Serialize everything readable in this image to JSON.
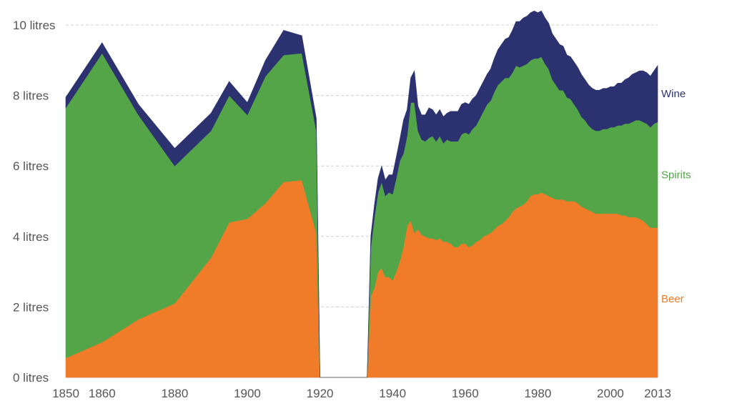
{
  "chart_data": {
    "type": "area",
    "stacked": true,
    "title": "",
    "xlabel": "",
    "ylabel": "",
    "xlim": [
      1850,
      2013
    ],
    "ylim": [
      0,
      10
    ],
    "grid": "horizontal dashed",
    "x_ticks": [
      1850,
      1860,
      1880,
      1900,
      1920,
      1940,
      1960,
      1980,
      2000,
      2013
    ],
    "x_tick_labels": [
      "1850",
      "1860",
      "1880",
      "1900",
      "1920",
      "1940",
      "1960",
      "1980",
      "2000",
      "2013"
    ],
    "y_ticks": [
      0,
      2,
      4,
      6,
      8,
      10
    ],
    "y_tick_labels": [
      "0 litres",
      "2 litres",
      "4 litres",
      "6 litres",
      "8 litres",
      "10 litres"
    ],
    "series": [
      {
        "name": "Beer",
        "color": "#f07b28",
        "label_color": "#f07b28",
        "points": [
          [
            1850,
            0.55
          ],
          [
            1860,
            1.0
          ],
          [
            1870,
            1.65
          ],
          [
            1880,
            2.1
          ],
          [
            1890,
            3.4
          ],
          [
            1895,
            4.4
          ],
          [
            1900,
            4.5
          ],
          [
            1905,
            4.95
          ],
          [
            1910,
            5.55
          ],
          [
            1915,
            5.6
          ],
          [
            1919,
            4.1
          ],
          [
            1920,
            0
          ],
          [
            1933,
            0
          ],
          [
            1934,
            2.3
          ],
          [
            1935,
            2.55
          ],
          [
            1936,
            3.0
          ],
          [
            1937,
            3.1
          ],
          [
            1938,
            2.85
          ],
          [
            1939,
            2.85
          ],
          [
            1940,
            2.75
          ],
          [
            1941,
            3.0
          ],
          [
            1942,
            3.3
          ],
          [
            1943,
            3.7
          ],
          [
            1944,
            4.3
          ],
          [
            1945,
            4.45
          ],
          [
            1946,
            4.1
          ],
          [
            1947,
            4.2
          ],
          [
            1948,
            4.05
          ],
          [
            1949,
            4.0
          ],
          [
            1950,
            3.95
          ],
          [
            1951,
            3.95
          ],
          [
            1952,
            3.9
          ],
          [
            1953,
            3.95
          ],
          [
            1954,
            3.85
          ],
          [
            1955,
            3.85
          ],
          [
            1956,
            3.8
          ],
          [
            1957,
            3.7
          ],
          [
            1958,
            3.7
          ],
          [
            1959,
            3.8
          ],
          [
            1960,
            3.8
          ],
          [
            1961,
            3.7
          ],
          [
            1962,
            3.75
          ],
          [
            1963,
            3.85
          ],
          [
            1964,
            3.9
          ],
          [
            1965,
            4.0
          ],
          [
            1966,
            4.05
          ],
          [
            1967,
            4.1
          ],
          [
            1968,
            4.2
          ],
          [
            1969,
            4.3
          ],
          [
            1970,
            4.35
          ],
          [
            1971,
            4.45
          ],
          [
            1972,
            4.55
          ],
          [
            1973,
            4.7
          ],
          [
            1974,
            4.8
          ],
          [
            1975,
            4.85
          ],
          [
            1976,
            4.9
          ],
          [
            1977,
            5.0
          ],
          [
            1978,
            5.15
          ],
          [
            1979,
            5.2
          ],
          [
            1980,
            5.2
          ],
          [
            1981,
            5.25
          ],
          [
            1982,
            5.2
          ],
          [
            1983,
            5.15
          ],
          [
            1984,
            5.1
          ],
          [
            1985,
            5.05
          ],
          [
            1986,
            5.05
          ],
          [
            1987,
            5.05
          ],
          [
            1988,
            5.0
          ],
          [
            1989,
            5.0
          ],
          [
            1990,
            5.0
          ],
          [
            1991,
            4.95
          ],
          [
            1992,
            4.85
          ],
          [
            1993,
            4.8
          ],
          [
            1994,
            4.75
          ],
          [
            1995,
            4.7
          ],
          [
            1996,
            4.65
          ],
          [
            1997,
            4.65
          ],
          [
            1998,
            4.65
          ],
          [
            1999,
            4.65
          ],
          [
            2000,
            4.65
          ],
          [
            2001,
            4.65
          ],
          [
            2002,
            4.65
          ],
          [
            2003,
            4.6
          ],
          [
            2004,
            4.6
          ],
          [
            2005,
            4.55
          ],
          [
            2006,
            4.55
          ],
          [
            2007,
            4.55
          ],
          [
            2008,
            4.5
          ],
          [
            2009,
            4.45
          ],
          [
            2010,
            4.35
          ],
          [
            2011,
            4.25
          ],
          [
            2012,
            4.25
          ],
          [
            2013,
            4.25
          ]
        ]
      },
      {
        "name": "Spirits",
        "color": "#53a548",
        "label_color": "#53a548",
        "points": [
          [
            1850,
            7.1
          ],
          [
            1860,
            8.2
          ],
          [
            1870,
            5.8
          ],
          [
            1880,
            3.9
          ],
          [
            1890,
            3.6
          ],
          [
            1895,
            3.6
          ],
          [
            1900,
            2.95
          ],
          [
            1905,
            3.6
          ],
          [
            1910,
            3.6
          ],
          [
            1915,
            3.6
          ],
          [
            1919,
            2.9
          ],
          [
            1920,
            0
          ],
          [
            1933,
            0
          ],
          [
            1934,
            1.4
          ],
          [
            1935,
            2.0
          ],
          [
            1936,
            2.25
          ],
          [
            1937,
            2.45
          ],
          [
            1938,
            2.3
          ],
          [
            1939,
            2.4
          ],
          [
            1940,
            2.45
          ],
          [
            1941,
            2.65
          ],
          [
            1942,
            2.85
          ],
          [
            1943,
            2.65
          ],
          [
            1944,
            2.55
          ],
          [
            1945,
            3.35
          ],
          [
            1946,
            3.7
          ],
          [
            1947,
            2.8
          ],
          [
            1948,
            2.7
          ],
          [
            1949,
            2.7
          ],
          [
            1950,
            2.85
          ],
          [
            1951,
            2.9
          ],
          [
            1952,
            2.8
          ],
          [
            1953,
            2.9
          ],
          [
            1954,
            2.8
          ],
          [
            1955,
            2.9
          ],
          [
            1956,
            2.9
          ],
          [
            1957,
            3.0
          ],
          [
            1958,
            3.0
          ],
          [
            1959,
            3.1
          ],
          [
            1960,
            3.15
          ],
          [
            1961,
            3.2
          ],
          [
            1962,
            3.3
          ],
          [
            1963,
            3.3
          ],
          [
            1964,
            3.45
          ],
          [
            1965,
            3.55
          ],
          [
            1966,
            3.7
          ],
          [
            1967,
            3.75
          ],
          [
            1968,
            3.9
          ],
          [
            1969,
            4.0
          ],
          [
            1970,
            4.05
          ],
          [
            1971,
            4.05
          ],
          [
            1972,
            3.95
          ],
          [
            1973,
            3.95
          ],
          [
            1974,
            4.05
          ],
          [
            1975,
            3.95
          ],
          [
            1976,
            3.95
          ],
          [
            1977,
            3.9
          ],
          [
            1978,
            3.85
          ],
          [
            1979,
            3.85
          ],
          [
            1980,
            3.85
          ],
          [
            1981,
            3.85
          ],
          [
            1982,
            3.7
          ],
          [
            1983,
            3.6
          ],
          [
            1984,
            3.35
          ],
          [
            1985,
            3.25
          ],
          [
            1986,
            3.1
          ],
          [
            1987,
            3.1
          ],
          [
            1988,
            2.95
          ],
          [
            1989,
            2.9
          ],
          [
            1990,
            2.75
          ],
          [
            1991,
            2.65
          ],
          [
            1992,
            2.55
          ],
          [
            1993,
            2.5
          ],
          [
            1994,
            2.4
          ],
          [
            1995,
            2.35
          ],
          [
            1996,
            2.35
          ],
          [
            1997,
            2.35
          ],
          [
            1998,
            2.4
          ],
          [
            1999,
            2.4
          ],
          [
            2000,
            2.45
          ],
          [
            2001,
            2.45
          ],
          [
            2002,
            2.5
          ],
          [
            2003,
            2.55
          ],
          [
            2004,
            2.6
          ],
          [
            2005,
            2.65
          ],
          [
            2006,
            2.7
          ],
          [
            2007,
            2.75
          ],
          [
            2008,
            2.8
          ],
          [
            2009,
            2.8
          ],
          [
            2010,
            2.85
          ],
          [
            2011,
            2.85
          ],
          [
            2012,
            2.95
          ],
          [
            2013,
            3.0
          ]
        ]
      },
      {
        "name": "Wine",
        "color": "#2c3270",
        "label_color": "#2c3270",
        "points": [
          [
            1850,
            0.3
          ],
          [
            1860,
            0.3
          ],
          [
            1870,
            0.3
          ],
          [
            1880,
            0.5
          ],
          [
            1890,
            0.5
          ],
          [
            1895,
            0.4
          ],
          [
            1900,
            0.35
          ],
          [
            1905,
            0.45
          ],
          [
            1910,
            0.7
          ],
          [
            1915,
            0.5
          ],
          [
            1919,
            0.35
          ],
          [
            1920,
            0
          ],
          [
            1933,
            0
          ],
          [
            1934,
            0.3
          ],
          [
            1935,
            0.35
          ],
          [
            1936,
            0.4
          ],
          [
            1937,
            0.45
          ],
          [
            1938,
            0.45
          ],
          [
            1939,
            0.5
          ],
          [
            1940,
            0.55
          ],
          [
            1941,
            0.6
          ],
          [
            1942,
            0.6
          ],
          [
            1943,
            0.95
          ],
          [
            1944,
            0.75
          ],
          [
            1945,
            0.7
          ],
          [
            1946,
            0.9
          ],
          [
            1947,
            0.7
          ],
          [
            1948,
            0.7
          ],
          [
            1949,
            0.75
          ],
          [
            1950,
            0.85
          ],
          [
            1951,
            0.75
          ],
          [
            1952,
            0.75
          ],
          [
            1953,
            0.75
          ],
          [
            1954,
            0.75
          ],
          [
            1955,
            0.75
          ],
          [
            1956,
            0.85
          ],
          [
            1957,
            0.85
          ],
          [
            1958,
            0.85
          ],
          [
            1959,
            0.85
          ],
          [
            1960,
            0.85
          ],
          [
            1961,
            0.85
          ],
          [
            1962,
            0.85
          ],
          [
            1963,
            0.85
          ],
          [
            1964,
            0.85
          ],
          [
            1965,
            0.85
          ],
          [
            1966,
            0.85
          ],
          [
            1967,
            0.9
          ],
          [
            1968,
            0.95
          ],
          [
            1969,
            1.0
          ],
          [
            1970,
            1.05
          ],
          [
            1971,
            1.1
          ],
          [
            1972,
            1.15
          ],
          [
            1973,
            1.2
          ],
          [
            1974,
            1.25
          ],
          [
            1975,
            1.3
          ],
          [
            1976,
            1.35
          ],
          [
            1977,
            1.35
          ],
          [
            1978,
            1.35
          ],
          [
            1979,
            1.35
          ],
          [
            1980,
            1.3
          ],
          [
            1981,
            1.3
          ],
          [
            1982,
            1.3
          ],
          [
            1983,
            1.3
          ],
          [
            1984,
            1.3
          ],
          [
            1985,
            1.3
          ],
          [
            1986,
            1.3
          ],
          [
            1987,
            1.25
          ],
          [
            1988,
            1.2
          ],
          [
            1989,
            1.2
          ],
          [
            1990,
            1.2
          ],
          [
            1991,
            1.2
          ],
          [
            1992,
            1.2
          ],
          [
            1993,
            1.15
          ],
          [
            1994,
            1.15
          ],
          [
            1995,
            1.15
          ],
          [
            1996,
            1.15
          ],
          [
            1997,
            1.15
          ],
          [
            1998,
            1.15
          ],
          [
            1999,
            1.15
          ],
          [
            2000,
            1.15
          ],
          [
            2001,
            1.15
          ],
          [
            2002,
            1.2
          ],
          [
            2003,
            1.2
          ],
          [
            2004,
            1.25
          ],
          [
            2005,
            1.3
          ],
          [
            2006,
            1.35
          ],
          [
            2007,
            1.35
          ],
          [
            2008,
            1.4
          ],
          [
            2009,
            1.45
          ],
          [
            2010,
            1.45
          ],
          [
            2011,
            1.45
          ],
          [
            2012,
            1.5
          ],
          [
            2013,
            1.6
          ]
        ]
      }
    ]
  }
}
